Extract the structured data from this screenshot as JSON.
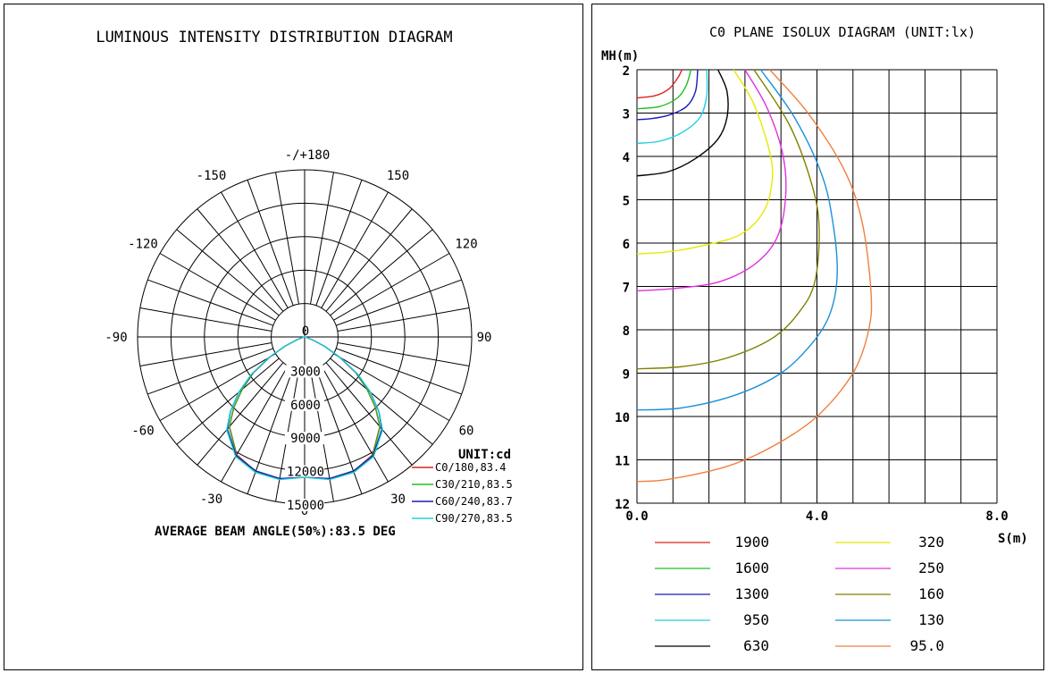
{
  "chart_data": [
    {
      "type": "polar",
      "title": "LUMINOUS INTENSITY DISTRIBUTION DIAGRAM",
      "unit_label": "UNIT:cd",
      "angle_labels": [
        "-/+180",
        "-150",
        "150",
        "-120",
        "120",
        "-90",
        "90",
        "-60",
        "60",
        "-30",
        "30",
        "0"
      ],
      "angle_values": [
        180,
        -150,
        150,
        -120,
        120,
        -90,
        90,
        -60,
        60,
        -30,
        30,
        0
      ],
      "radial_labels": [
        "0",
        "3000",
        "6000",
        "9000",
        "12000",
        "15000"
      ],
      "radial_values": [
        0,
        3000,
        6000,
        9000,
        12000,
        15000
      ],
      "rlim": [
        0,
        15000
      ],
      "grid": true,
      "legend_position": "bottom-right",
      "footer": "AVERAGE BEAM ANGLE(50%):83.5 DEG",
      "series": [
        {
          "name": "C0/180,83.4",
          "color": "#e02020",
          "angles": [
            0,
            10,
            20,
            30,
            40,
            45,
            50,
            55,
            60,
            65,
            70,
            80,
            90
          ],
          "values": [
            12600,
            12900,
            12850,
            12200,
            10500,
            9000,
            7300,
            5600,
            3600,
            1900,
            700,
            100,
            0
          ]
        },
        {
          "name": "C30/210,83.5",
          "color": "#20c020",
          "angles": [
            0,
            10,
            20,
            30,
            40,
            45,
            50,
            55,
            60,
            65,
            70,
            80,
            90
          ],
          "values": [
            12600,
            12950,
            12900,
            12250,
            10550,
            9050,
            7350,
            5650,
            3650,
            1950,
            720,
            100,
            0
          ]
        },
        {
          "name": "C60/240,83.7",
          "color": "#1a1ab4",
          "angles": [
            0,
            10,
            20,
            30,
            40,
            45,
            50,
            55,
            60,
            65,
            70,
            80,
            90
          ],
          "values": [
            12600,
            12900,
            12800,
            12300,
            10800,
            9400,
            7700,
            5800,
            3700,
            2000,
            750,
            100,
            0
          ]
        },
        {
          "name": "C90/270,83.5",
          "color": "#20d0e0",
          "angles": [
            0,
            10,
            20,
            30,
            40,
            45,
            50,
            55,
            60,
            65,
            70,
            80,
            90
          ],
          "values": [
            12600,
            13000,
            12950,
            12400,
            10900,
            9450,
            7750,
            5850,
            3750,
            2050,
            760,
            100,
            0
          ]
        }
      ]
    },
    {
      "type": "line",
      "title": "C0 PLANE ISOLUX DIAGRAM (UNIT:lx)",
      "ylabel": "MH(m)",
      "xlabel": "S(m)",
      "x_tick_labels": [
        "0.0",
        "4.0",
        "8.0"
      ],
      "x_tick_values": [
        0,
        4,
        8
      ],
      "y_tick_labels": [
        "2",
        "3",
        "4",
        "5",
        "6",
        "7",
        "8",
        "9",
        "10",
        "11",
        "12"
      ],
      "y_tick_values": [
        2,
        3,
        4,
        5,
        6,
        7,
        8,
        9,
        10,
        11,
        12
      ],
      "xlim": [
        0,
        8
      ],
      "ylim": [
        2,
        12
      ],
      "grid": true,
      "legend_position": "bottom",
      "series": [
        {
          "name": "1900",
          "color": "#e02020",
          "x": [
            1.0,
            0.9,
            0.7,
            0.4,
            0.0
          ],
          "y": [
            2.0,
            2.2,
            2.45,
            2.6,
            2.65
          ]
        },
        {
          "name": "1600",
          "color": "#20c020",
          "x": [
            1.2,
            1.1,
            0.9,
            0.5,
            0.0
          ],
          "y": [
            2.0,
            2.35,
            2.65,
            2.85,
            2.9
          ]
        },
        {
          "name": "1300",
          "color": "#1a1ab4",
          "x": [
            1.35,
            1.3,
            1.1,
            0.7,
            0.3,
            0.0
          ],
          "y": [
            2.0,
            2.5,
            2.85,
            3.05,
            3.13,
            3.15
          ]
        },
        {
          "name": "950",
          "color": "#20d0e0",
          "x": [
            1.55,
            1.55,
            1.4,
            1.0,
            0.5,
            0.0
          ],
          "y": [
            2.0,
            2.6,
            3.1,
            3.45,
            3.65,
            3.7
          ]
        },
        {
          "name": "630",
          "color": "#000000",
          "x": [
            1.8,
            2.0,
            2.0,
            1.8,
            1.3,
            0.7,
            0.0
          ],
          "y": [
            2.0,
            2.5,
            3.1,
            3.6,
            4.05,
            4.35,
            4.45
          ]
        },
        {
          "name": "320",
          "color": "#e8e800",
          "x": [
            2.15,
            2.6,
            2.95,
            3.0,
            2.8,
            2.3,
            1.5,
            0.7,
            0.0
          ],
          "y": [
            2.0,
            2.8,
            3.9,
            4.6,
            5.3,
            5.8,
            6.05,
            6.2,
            6.25
          ]
        },
        {
          "name": "250",
          "color": "#e030e0",
          "x": [
            2.4,
            2.9,
            3.25,
            3.3,
            3.1,
            2.6,
            1.8,
            0.8,
            0.0
          ],
          "y": [
            2.0,
            2.9,
            4.0,
            5.0,
            5.9,
            6.5,
            6.9,
            7.05,
            7.1
          ]
        },
        {
          "name": "160",
          "color": "#808000",
          "x": [
            2.6,
            3.4,
            3.9,
            4.05,
            3.95,
            3.6,
            3.0,
            2.0,
            1.0,
            0.0
          ],
          "y": [
            2.0,
            3.3,
            4.7,
            5.7,
            6.9,
            7.6,
            8.2,
            8.65,
            8.85,
            8.9
          ]
        },
        {
          "name": "130",
          "color": "#1a90d8",
          "x": [
            2.75,
            3.5,
            4.1,
            4.35,
            4.45,
            4.3,
            3.9,
            3.2,
            2.2,
            1.0,
            0.0
          ],
          "y": [
            2.0,
            3.1,
            4.4,
            5.5,
            6.7,
            7.6,
            8.3,
            9.0,
            9.5,
            9.8,
            9.85
          ]
        },
        {
          "name": "95.0",
          "color": "#f08040",
          "x": [
            2.95,
            3.8,
            4.6,
            5.0,
            5.2,
            5.15,
            4.8,
            4.0,
            3.0,
            2.0,
            0.7,
            0.0
          ],
          "y": [
            2.0,
            3.0,
            4.3,
            5.5,
            7.1,
            8.0,
            9.0,
            10.0,
            10.7,
            11.15,
            11.45,
            11.5
          ]
        }
      ]
    }
  ]
}
